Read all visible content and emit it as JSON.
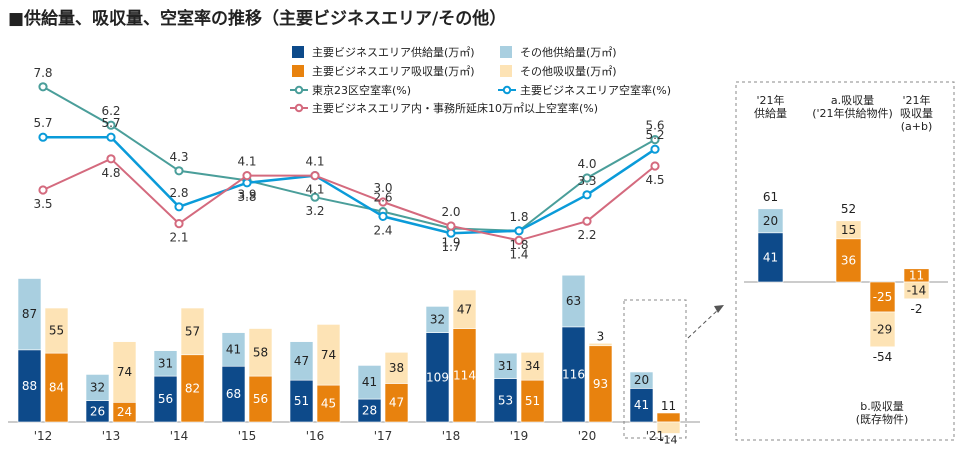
{
  "title": "■供給量、吸収量、空室率の推移（主要ビジネスエリア/その他）",
  "chart_data": {
    "type": "bar+line",
    "categories": [
      "'12",
      "'13",
      "'14",
      "'15",
      "'16",
      "'17",
      "'18",
      "'19",
      "'20",
      "'21"
    ],
    "bar_ylim": [
      0,
      250
    ],
    "line_ylim": [
      1.0,
      8.5
    ],
    "series": [
      {
        "name": "主要ビジネスエリア供給量(万㎡)",
        "kind": "bar",
        "stack": "supply",
        "color": "#0d4a8a",
        "values": [
          88,
          26,
          56,
          68,
          51,
          28,
          109,
          53,
          116,
          41
        ]
      },
      {
        "name": "その他供給量(万㎡)",
        "kind": "bar",
        "stack": "supply",
        "color": "#a9cfe0",
        "values": [
          87,
          32,
          31,
          41,
          47,
          41,
          32,
          31,
          63,
          20
        ]
      },
      {
        "name": "主要ビジネスエリア吸収量(万㎡)",
        "kind": "bar",
        "stack": "absorption",
        "color": "#e8820e",
        "values": [
          84,
          24,
          82,
          56,
          45,
          47,
          114,
          51,
          93,
          11
        ]
      },
      {
        "name": "その他吸収量(万㎡)",
        "kind": "bar",
        "stack": "absorption",
        "color": "#fde3b5",
        "values": [
          55,
          74,
          57,
          58,
          74,
          38,
          47,
          34,
          3,
          -14
        ]
      },
      {
        "name": "東京23区空室率(%)",
        "kind": "line",
        "color": "#4a9e9a",
        "values": [
          7.8,
          6.2,
          4.3,
          3.9,
          3.2,
          2.6,
          1.9,
          1.8,
          4.0,
          5.6
        ]
      },
      {
        "name": "主要ビジネスエリア空室率(%)",
        "kind": "line",
        "color": "#0a9bd9",
        "values": [
          5.7,
          5.7,
          2.8,
          3.8,
          4.1,
          2.4,
          1.7,
          1.8,
          3.3,
          5.2
        ]
      },
      {
        "name": "主要ビジネスエリア内・事務所延床10万㎡以上空室率(%)",
        "kind": "line",
        "color": "#d46a7e",
        "values": [
          3.5,
          4.8,
          2.1,
          4.1,
          4.1,
          3.0,
          2.0,
          1.4,
          2.2,
          4.5
        ]
      }
    ],
    "inset": {
      "columns": [
        {
          "label": "'21年\n供給量",
          "segments": [
            {
              "value": 41,
              "color": "#0d4a8a"
            },
            {
              "value": 20,
              "color": "#a9cfe0"
            }
          ],
          "total": "61"
        },
        {
          "label": "a.吸収量\n('21年供給物件)",
          "segments": [
            {
              "value": 36,
              "color": "#e8820e"
            },
            {
              "value": 15,
              "color": "#fde3b5"
            }
          ],
          "total": "52"
        },
        {
          "label": "",
          "segments": [
            {
              "value": -25,
              "color": "#e8820e"
            },
            {
              "value": -29,
              "color": "#fde3b5"
            }
          ],
          "total": "-54"
        },
        {
          "label": "'21年\n吸収量\n(a+b)",
          "segments": [
            {
              "value": 11,
              "color": "#e8820e"
            },
            {
              "value": -14,
              "color": "#fde3b5"
            }
          ],
          "total": "-2"
        }
      ],
      "bottom_label": "b.吸収量\n(既存物件)"
    }
  }
}
